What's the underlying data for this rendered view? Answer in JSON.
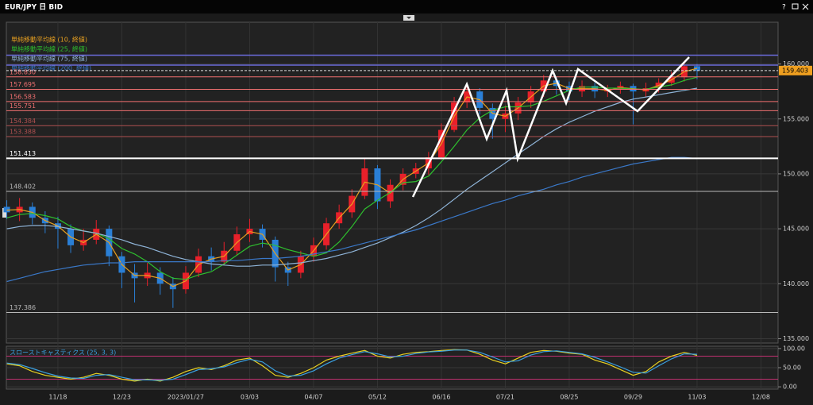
{
  "header": {
    "title": "EUR/JPY 日 BID",
    "help": "?"
  },
  "chart_data": [
    {
      "type": "candlestick",
      "categories": [
        null,
        null,
        null,
        null,
        "11/18",
        null,
        null,
        null,
        null,
        "12/23",
        null,
        null,
        null,
        null,
        "2023/01/27",
        null,
        null,
        null,
        null,
        "03/03",
        null,
        null,
        null,
        null,
        "04/07",
        null,
        null,
        null,
        null,
        "05/12",
        null,
        null,
        null,
        null,
        "06/16",
        null,
        null,
        null,
        null,
        "07/21",
        null,
        null,
        null,
        null,
        "08/25",
        null,
        null,
        null,
        null,
        "09/29",
        null,
        null,
        null,
        null,
        "11/03",
        null,
        null,
        null,
        null,
        "12/08",
        null
      ],
      "open": [
        147,
        146.5,
        147,
        146,
        145.5,
        145,
        143.5,
        144,
        145,
        142.5,
        141,
        140.5,
        141,
        140,
        139.5,
        141,
        142.5,
        142,
        143,
        144.5,
        145,
        144,
        141.5,
        141,
        142.5,
        143.5,
        145.5,
        146.5,
        148,
        150.5,
        147.5,
        149,
        150,
        150.5,
        151.5,
        154,
        156.5,
        157.5,
        156,
        155,
        155.5,
        156.5,
        157.5,
        158.5,
        158,
        157.5,
        158,
        157.5,
        157.7,
        158,
        157.5,
        157.8,
        158.3,
        158.8,
        159.8,
        null,
        null,
        null,
        null,
        null,
        null
      ],
      "high": [
        147.6,
        147.8,
        147.4,
        146.6,
        146.1,
        145.4,
        145,
        145.8,
        145.3,
        142.9,
        141.8,
        141.9,
        141.5,
        140.6,
        141.6,
        143.2,
        143.3,
        143.8,
        145.2,
        145.9,
        145.4,
        144.3,
        142,
        143,
        144.2,
        146,
        147.2,
        148.6,
        151.4,
        150.8,
        149.5,
        150.5,
        151,
        152,
        154.6,
        157,
        158.2,
        157.8,
        156.4,
        156.2,
        157,
        158,
        159,
        158.8,
        158.4,
        158.5,
        158.3,
        158.1,
        158.4,
        158.2,
        158.3,
        158.7,
        159.3,
        160.3,
        160,
        null,
        null,
        null,
        null,
        null,
        null
      ],
      "low": [
        145.9,
        145.7,
        145.4,
        144.6,
        143.2,
        142.8,
        143,
        143.6,
        141.6,
        139.6,
        138.3,
        139.8,
        139,
        137.8,
        139.1,
        140.6,
        141.2,
        141.7,
        142.6,
        143.8,
        143.3,
        140.2,
        139.8,
        140.5,
        142,
        143.1,
        145,
        146,
        147.7,
        146.8,
        146.9,
        148.5,
        149.6,
        149.9,
        151.3,
        153.8,
        156,
        155.4,
        153.2,
        153.8,
        154.9,
        156,
        157,
        157.2,
        156.7,
        157,
        156.9,
        157,
        157.3,
        154.5,
        157,
        157.4,
        158,
        158.4,
        158.6,
        null,
        null,
        null,
        null,
        null,
        null
      ],
      "close": [
        146.5,
        147,
        146,
        145.5,
        145,
        143.5,
        144,
        145,
        142.5,
        141,
        140.5,
        141,
        140,
        139.5,
        141,
        142.5,
        142,
        143,
        144.5,
        145,
        144,
        141.5,
        141,
        142.5,
        143.5,
        145.5,
        146.5,
        148,
        150.5,
        147.5,
        149,
        150,
        150.5,
        151.5,
        154,
        156.5,
        157.5,
        156,
        155,
        155.5,
        156.5,
        157.5,
        158.5,
        158,
        157.5,
        158,
        157.5,
        157.7,
        158,
        157.5,
        157.8,
        158.3,
        158.8,
        159.8,
        159.4,
        null,
        null,
        null,
        null,
        null,
        null
      ],
      "up_color": "#e8202a",
      "down_color": "#2a7fd6",
      "series": [
        {
          "name": "単純移動平均線 (10, 終値)",
          "color": "#e8a020",
          "values": [
            146.7,
            146.75,
            146.5,
            145.75,
            145.25,
            144.25,
            143.75,
            144.5,
            143.75,
            141.75,
            140.75,
            140.75,
            140.5,
            139.75,
            140.25,
            141.75,
            142.25,
            142.5,
            143.75,
            144.75,
            144.5,
            142.75,
            141.25,
            141.75,
            143,
            144.5,
            146,
            147.25,
            149.25,
            149,
            148.25,
            149.5,
            150.25,
            151,
            152.75,
            155.25,
            157,
            156.75,
            155.5,
            155.25,
            156,
            157,
            158,
            158.25,
            157.75,
            157.75,
            157.75,
            157.6,
            157.85,
            157.75,
            157.65,
            158.05,
            158.55,
            159.3,
            159.6,
            null,
            null,
            null,
            null,
            null,
            null
          ]
        },
        {
          "name": "単純移動平均線 (25, 終値)",
          "color": "#2ec02e",
          "values": [
            146,
            146.3,
            146.4,
            146.2,
            145.9,
            145.2,
            144.8,
            144.6,
            144.1,
            143.2,
            142.7,
            142,
            141.1,
            140.5,
            140.4,
            140.8,
            141.1,
            141.8,
            142.6,
            143.4,
            143.7,
            143.5,
            143.1,
            142.8,
            142.5,
            142.8,
            143.8,
            145.2,
            146.8,
            147.6,
            148.3,
            149.2,
            149.3,
            149.8,
            151.1,
            152.5,
            154,
            155.1,
            155.8,
            156.1,
            156.1,
            156.2,
            156.6,
            157.1,
            157.6,
            157.9,
            157.9,
            157.8,
            157.8,
            157.7,
            157.7,
            157.9,
            158.1,
            158.5,
            158.8,
            null,
            null,
            null,
            null,
            null,
            null
          ]
        },
        {
          "name": "単純移動平均線 (75, 終値)",
          "color": "#8fb4d8",
          "values": [
            145,
            145.2,
            145.3,
            145.3,
            145.2,
            145,
            144.8,
            144.6,
            144.3,
            144,
            143.6,
            143.3,
            142.9,
            142.5,
            142.2,
            142,
            141.8,
            141.7,
            141.6,
            141.6,
            141.7,
            141.7,
            141.8,
            141.9,
            142.1,
            142.3,
            142.6,
            142.9,
            143.3,
            143.7,
            144.2,
            144.7,
            145.3,
            146,
            146.8,
            147.7,
            148.6,
            149.4,
            150.2,
            151,
            151.8,
            152.6,
            153.4,
            154.1,
            154.7,
            155.2,
            155.7,
            156.1,
            156.5,
            156.8,
            157,
            157.2,
            157.4,
            157.6,
            157.8,
            null,
            null,
            null,
            null,
            null,
            null
          ]
        },
        {
          "name": "単純移動平均線 (200, 終値)",
          "color": "#3a78c8",
          "values": [
            140.2,
            140.5,
            140.8,
            141.1,
            141.3,
            141.5,
            141.7,
            141.8,
            141.9,
            141.9,
            142,
            142,
            142,
            142,
            142,
            142,
            142,
            142.1,
            142.1,
            142.2,
            142.3,
            142.3,
            142.4,
            142.5,
            142.7,
            142.9,
            143.1,
            143.4,
            143.7,
            144,
            144.3,
            144.6,
            144.9,
            145.3,
            145.7,
            146.1,
            146.5,
            146.9,
            147.3,
            147.6,
            148,
            148.3,
            148.6,
            149,
            149.3,
            149.7,
            150,
            150.3,
            150.6,
            150.9,
            151.1,
            151.3,
            151.5,
            151.5,
            151.4,
            null,
            null,
            null,
            null,
            null,
            null
          ]
        }
      ],
      "levels": [
        {
          "value": 158.83,
          "label": "158.830",
          "color": "#f07070"
        },
        {
          "value": 157.695,
          "color": "#f07070"
        },
        {
          "value": 156.583,
          "color": "#f07070"
        },
        {
          "value": 155.751,
          "color": "#f07070"
        },
        {
          "value": 154.384,
          "color": "#b05050"
        },
        {
          "value": 153.388,
          "color": "#b05050"
        },
        {
          "value": 151.413,
          "color": "#ffffff"
        },
        {
          "value": 148.402,
          "color": "#b8b8b8"
        },
        {
          "value": 137.386,
          "color": "#b8b8b8"
        }
      ],
      "band_lines": [
        160.8,
        159.9
      ],
      "band_color": "#6a6ad8",
      "last_price": 159.403,
      "ylim": [
        134.6,
        163.8
      ],
      "yticks": [
        {
          "value": 135,
          "label": "135.000"
        },
        {
          "value": 140,
          "label": "140.000"
        },
        {
          "value": 145,
          "label": "145.000"
        },
        {
          "value": 150,
          "label": "150.000"
        },
        {
          "value": 155,
          "label": "155.000"
        },
        {
          "value": 160,
          "label": "160.000"
        }
      ],
      "grid": true
    },
    {
      "type": "line",
      "title": "スローストキャスティクス (25, 3, 3)",
      "series": [
        {
          "color": "#e8d020",
          "values": [
            60,
            55,
            40,
            30,
            25,
            20,
            25,
            35,
            30,
            20,
            15,
            20,
            15,
            25,
            40,
            50,
            45,
            55,
            70,
            75,
            55,
            30,
            25,
            35,
            50,
            70,
            80,
            88,
            95,
            80,
            75,
            85,
            90,
            92,
            95,
            97,
            96,
            85,
            70,
            60,
            75,
            90,
            95,
            93,
            88,
            85,
            70,
            60,
            45,
            30,
            40,
            65,
            80,
            90,
            82,
            null,
            null,
            null,
            null,
            null,
            null
          ]
        },
        {
          "color": "#3aa0e0",
          "values": [
            62,
            58,
            48,
            37,
            28,
            23,
            22,
            30,
            32,
            25,
            18,
            18,
            17,
            20,
            32,
            45,
            47,
            52,
            63,
            72,
            65,
            42,
            28,
            30,
            42,
            60,
            75,
            84,
            92,
            86,
            78,
            80,
            87,
            91,
            93,
            96,
            96,
            90,
            78,
            65,
            68,
            83,
            92,
            94,
            90,
            86,
            77,
            65,
            52,
            38,
            36,
            55,
            73,
            86,
            85,
            null,
            null,
            null,
            null,
            null,
            null
          ]
        }
      ],
      "levels": [
        80,
        20
      ],
      "level_color": "#c03070",
      "ylim": [
        -6,
        106
      ],
      "yticks": [
        {
          "value": 0,
          "label": "0.00"
        },
        {
          "value": 50,
          "label": "50.00"
        },
        {
          "value": 100,
          "label": "100.00"
        }
      ],
      "grid": true
    }
  ]
}
